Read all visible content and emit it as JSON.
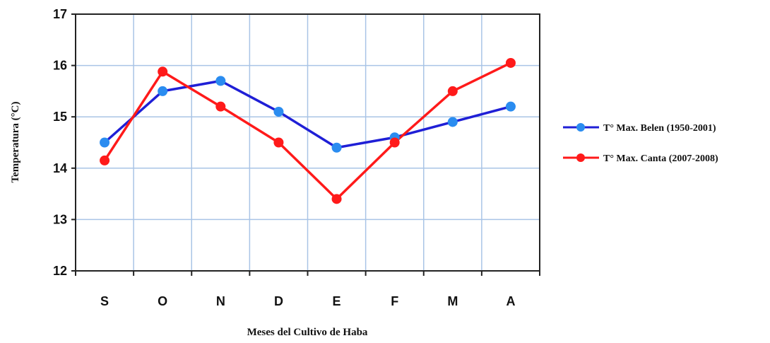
{
  "chart_data": {
    "type": "line",
    "title": "",
    "xlabel": "Meses del Cultivo de Haba",
    "ylabel": "Temperatura (°C)",
    "categories": [
      "S",
      "O",
      "N",
      "D",
      "E",
      "F",
      "M",
      "A"
    ],
    "ylim": [
      12,
      17
    ],
    "yticks": [
      "12",
      "13",
      "14",
      "15",
      "16",
      "17"
    ],
    "grid": true,
    "legend_position": "right",
    "series": [
      {
        "name": "T° Max. Belen (1950-2001)",
        "color": "#1f1fd6",
        "marker_color": "#2a8cf0",
        "values": [
          14.5,
          15.5,
          15.7,
          15.1,
          14.4,
          14.6,
          14.9,
          15.2
        ]
      },
      {
        "name": "T° Max. Canta (2007-2008)",
        "color": "#ff1a1a",
        "marker_color": "#ff1a1a",
        "values": [
          14.15,
          15.88,
          15.2,
          14.5,
          13.4,
          14.5,
          15.5,
          16.05
        ]
      }
    ]
  }
}
